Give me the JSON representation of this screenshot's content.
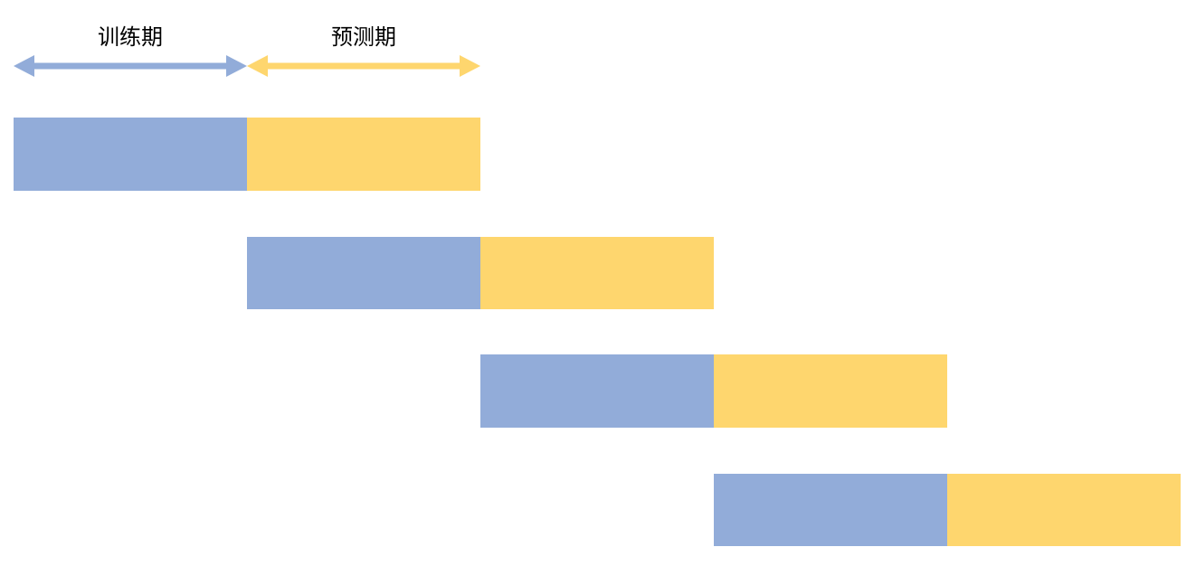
{
  "legend": {
    "training_label": "训练期",
    "prediction_label": "预测期"
  },
  "colors": {
    "training": "#92ACD9",
    "prediction": "#FED66E"
  },
  "windows": [
    {
      "name": "window-1",
      "training_label": "",
      "prediction_label": ""
    },
    {
      "name": "window-2",
      "training_label": "",
      "prediction_label": ""
    },
    {
      "name": "window-3",
      "training_label": "",
      "prediction_label": ""
    },
    {
      "name": "window-4",
      "training_label": "",
      "prediction_label": ""
    }
  ]
}
